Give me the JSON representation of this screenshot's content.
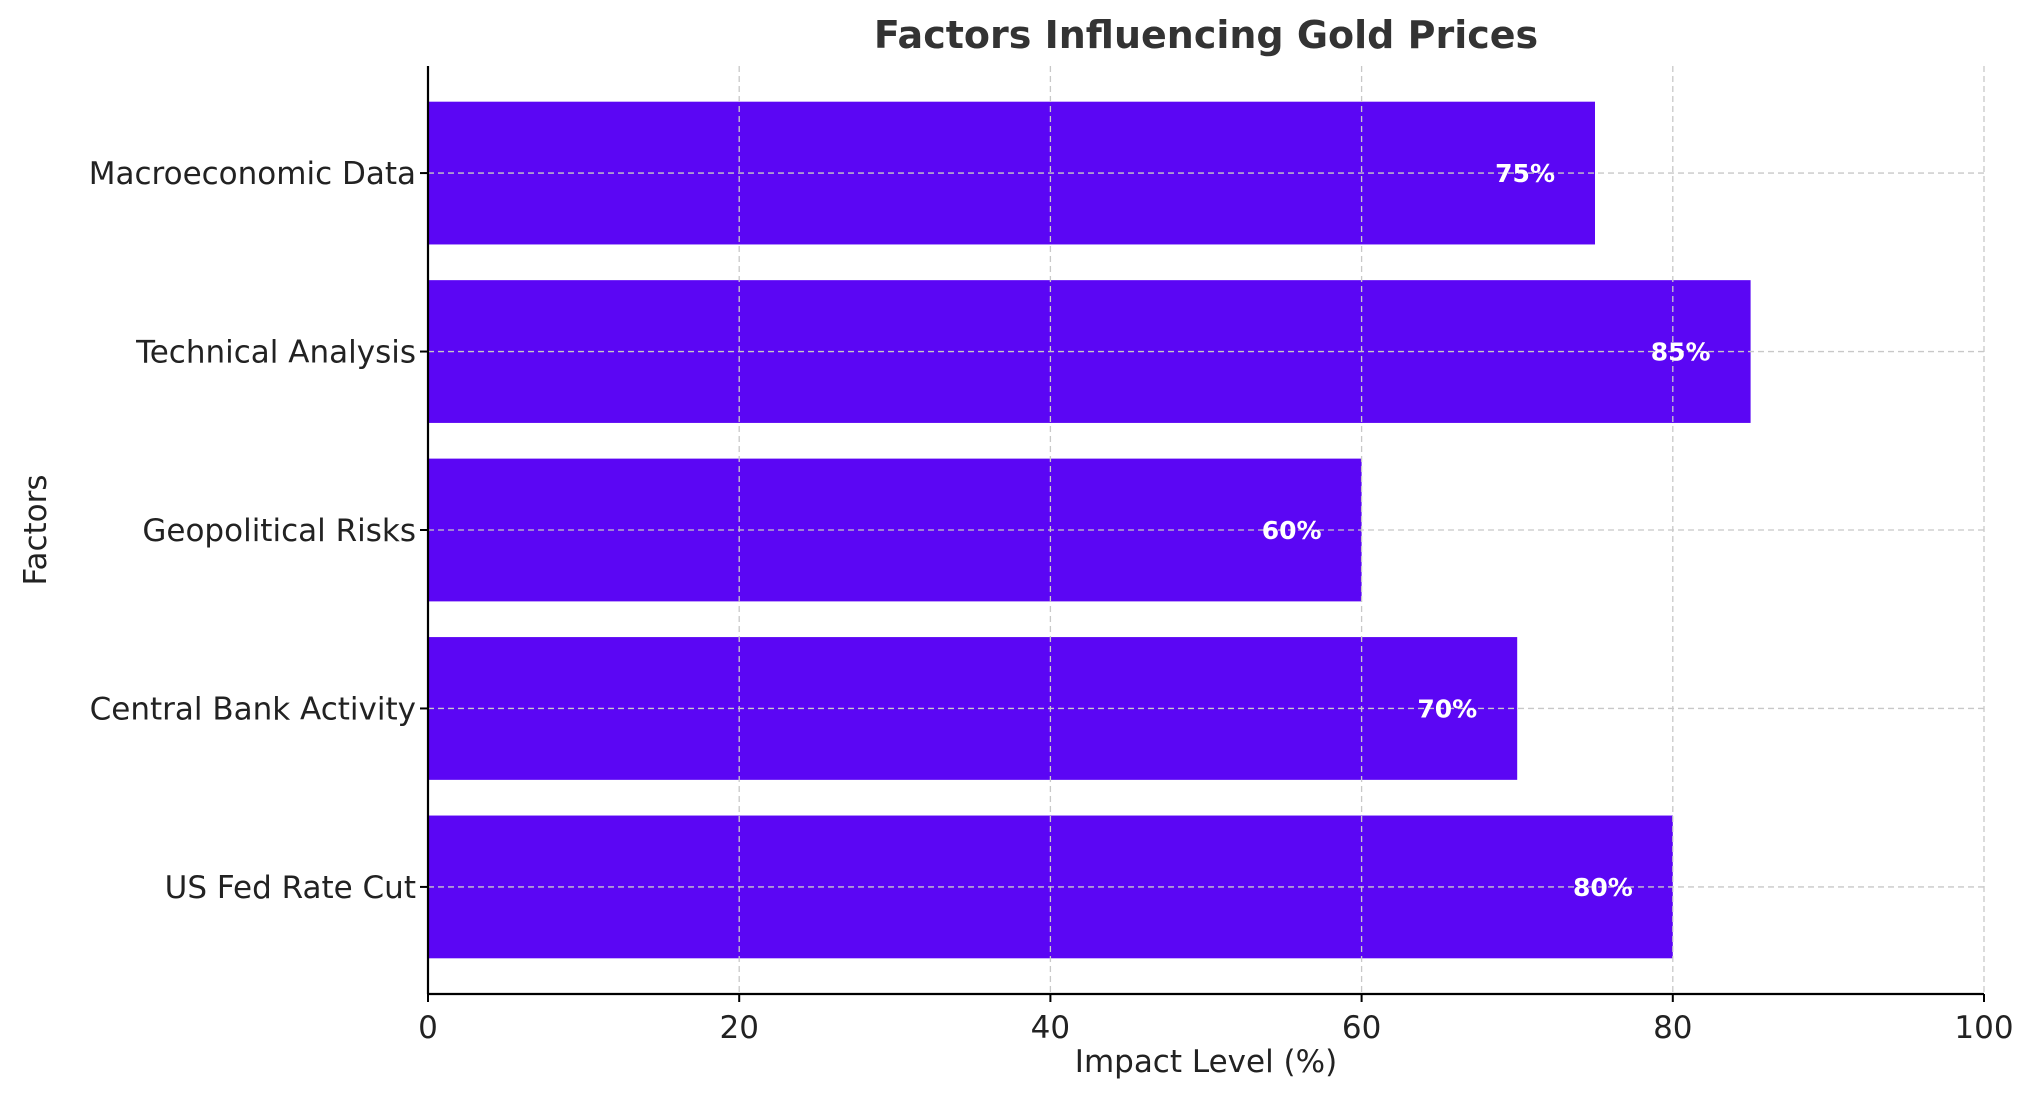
{
  "chart_data": {
    "type": "bar",
    "orientation": "horizontal",
    "title": "Factors Influencing Gold Prices",
    "xlabel": "Impact Level (%)",
    "ylabel": "Factors",
    "categories": [
      "US Fed Rate Cut",
      "Central Bank Activity",
      "Geopolitical Risks",
      "Technical Analysis",
      "Macroeconomic Data"
    ],
    "values": [
      80,
      70,
      60,
      85,
      75
    ],
    "data_labels": [
      "80%",
      "70%",
      "60%",
      "85%",
      "75%"
    ],
    "xlim": [
      0,
      100
    ],
    "xticks": [
      0,
      20,
      40,
      60,
      80,
      100
    ],
    "grid": true,
    "bar_color": "#5b06f4"
  }
}
